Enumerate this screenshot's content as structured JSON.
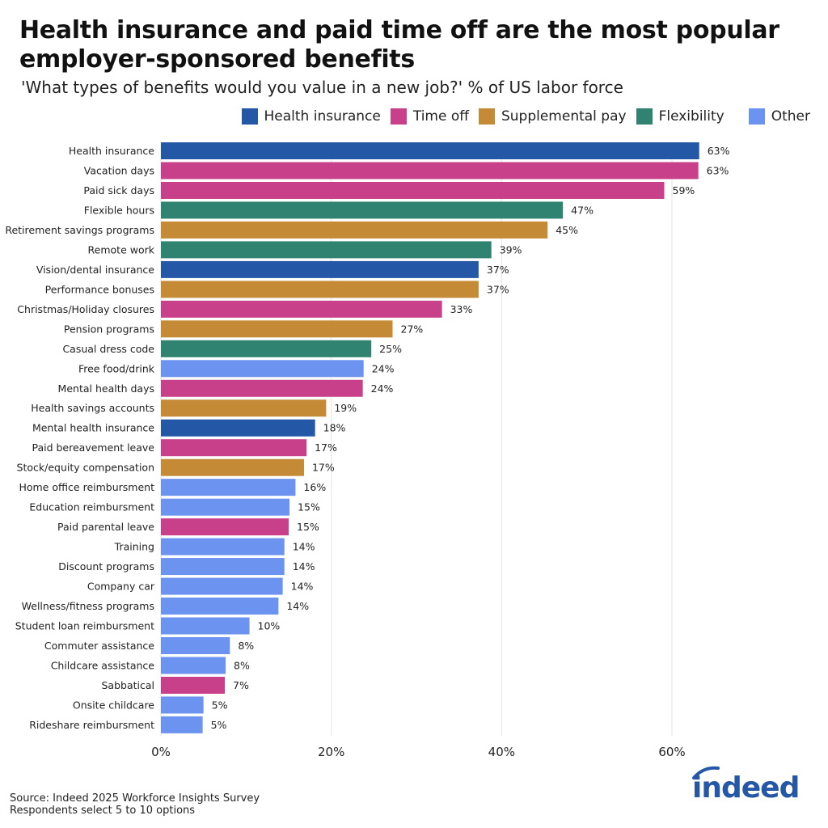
{
  "title": "Health insurance and paid time off are the most popular employer-sponsored benefits",
  "subtitle": "'What types of benefits would you value in a new job?' % of US labor force",
  "source": "Source: Indeed 2025 Workforce Insights Survey",
  "note": "Respondents select 5 to 10 options",
  "logo_text": "indeed",
  "chart_data": {
    "type": "bar",
    "orientation": "horizontal",
    "xlim": [
      0,
      70
    ],
    "xticks": [
      0,
      20,
      40,
      60
    ],
    "xtick_labels": [
      "0%",
      "20%",
      "40%",
      "60%"
    ],
    "grid": "vertical",
    "legend_position": "top-right",
    "legend": [
      {
        "name": "Health insurance",
        "color": "#2557a7"
      },
      {
        "name": "Time off",
        "color": "#c9408a"
      },
      {
        "name": "Supplemental pay",
        "color": "#c48a35"
      },
      {
        "name": "Flexibility",
        "color": "#2f8370"
      },
      {
        "name": "Other",
        "color": "#6b93ef"
      }
    ],
    "categories": [
      "Health insurance",
      "Vacation days",
      "Paid sick days",
      "Flexible hours",
      "Retirement savings programs",
      "Remote work",
      "Vision/dental insurance",
      "Performance bonuses",
      "Christmas/Holiday closures",
      "Pension programs",
      "Casual dress code",
      "Free food/drink",
      "Mental health days",
      "Health savings accounts",
      "Mental health insurance",
      "Paid bereavement leave",
      "Stock/equity compensation",
      "Home office reimbursment",
      "Education reimbursment",
      "Paid parental leave",
      "Training",
      "Discount programs",
      "Company car",
      "Wellness/fitness programs",
      "Student loan reimbursment",
      "Commuter assistance",
      "Childcare assistance",
      "Sabbatical",
      "Onsite childcare",
      "Rideshare reimbursment"
    ],
    "values": [
      63.2,
      63.1,
      59.1,
      47.2,
      45.4,
      38.8,
      37.3,
      37.3,
      33.0,
      27.2,
      24.7,
      23.8,
      23.7,
      19.4,
      18.1,
      17.1,
      16.8,
      15.8,
      15.1,
      15.0,
      14.5,
      14.5,
      14.3,
      13.8,
      10.4,
      8.1,
      7.6,
      7.5,
      5.0,
      4.9
    ],
    "data_labels": [
      "63%",
      "63%",
      "59%",
      "47%",
      "45%",
      "39%",
      "37%",
      "37%",
      "33%",
      "27%",
      "25%",
      "24%",
      "24%",
      "19%",
      "18%",
      "17%",
      "17%",
      "16%",
      "15%",
      "15%",
      "14%",
      "14%",
      "14%",
      "14%",
      "10%",
      "8%",
      "8%",
      "7%",
      "5%",
      "5%"
    ],
    "groups": [
      "Health insurance",
      "Time off",
      "Time off",
      "Flexibility",
      "Supplemental pay",
      "Flexibility",
      "Health insurance",
      "Supplemental pay",
      "Time off",
      "Supplemental pay",
      "Flexibility",
      "Other",
      "Time off",
      "Supplemental pay",
      "Health insurance",
      "Time off",
      "Supplemental pay",
      "Other",
      "Other",
      "Time off",
      "Other",
      "Other",
      "Other",
      "Other",
      "Other",
      "Other",
      "Other",
      "Time off",
      "Other",
      "Other"
    ]
  }
}
